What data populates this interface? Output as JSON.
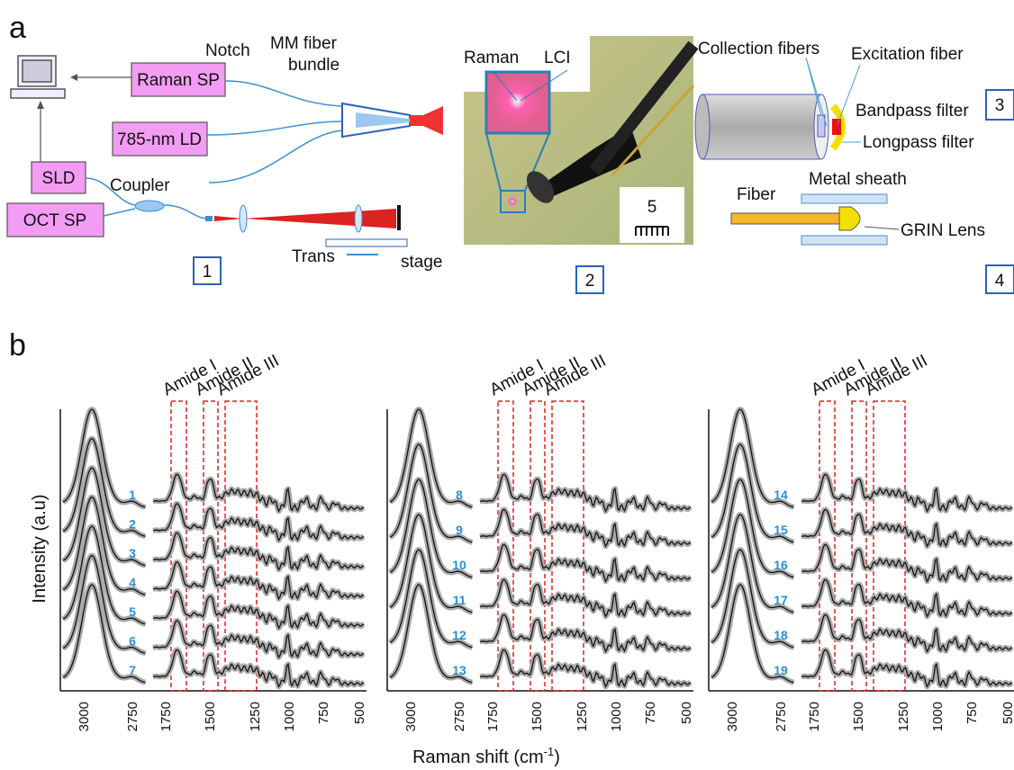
{
  "panel_a": {
    "label": "a",
    "setup": {
      "notch": "Notch",
      "raman_sp": "Raman SP",
      "mm_fiber": [
        "MM fiber",
        "bundle"
      ],
      "laser": "785-nm LD",
      "sld": "SLD",
      "coupler": "Coupler",
      "oct_sp": "OCT SP",
      "trans": "Trans",
      "stage": "stage",
      "index": "1"
    },
    "image": {
      "raman": "Raman",
      "lci": "LCI",
      "scale": "5",
      "index": "2"
    },
    "probe": {
      "collection": "Collection fibers",
      "excitation": "Excitation fiber",
      "bandpass": "Bandpass filter",
      "longpass": "Longpass filter",
      "index": "3"
    },
    "sheath": {
      "metal": "Metal sheath",
      "fiber": "Fiber",
      "grin": "GRIN Lens",
      "index": "4"
    }
  },
  "panel_b": {
    "label": "b",
    "y_label": "Intensity (a.u)",
    "x_label": {
      "text": "Raman shift (cm",
      "superscript": "-1",
      "suffix": ")"
    },
    "peaks": [
      "Amide I",
      "Amide II",
      "Amide III"
    ],
    "x_ticks": [
      3000,
      2750,
      1750,
      1500,
      1250,
      1000,
      750,
      500
    ],
    "groups": [
      [
        "1",
        "2",
        "3",
        "4",
        "5",
        "6",
        "7"
      ],
      [
        "8",
        "9",
        "10",
        "11",
        "12",
        "13"
      ],
      [
        "14",
        "15",
        "16",
        "17",
        "18",
        "19"
      ]
    ]
  }
}
